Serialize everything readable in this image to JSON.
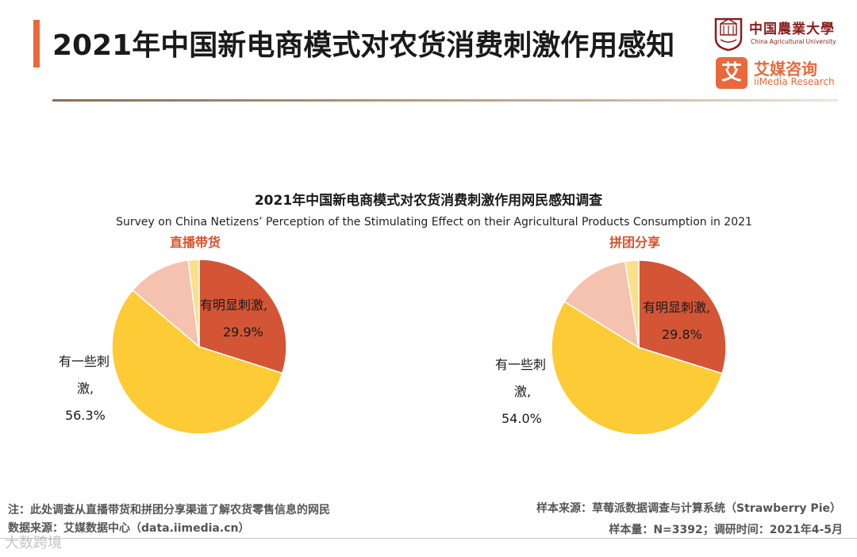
{
  "header": {
    "title": "2021年中国新电商模式对农货消费刺激作用感知"
  },
  "logos": {
    "cau": {
      "cn": "中国農業大學",
      "en": "China Agricultural University"
    },
    "iimedia": {
      "badge": "艾",
      "cn": "艾媒咨询",
      "en": "iiMedia Research"
    }
  },
  "chart_data": {
    "type": "pie",
    "title": "2021年中国新电商模式对农货消费刺激作用网民感知调查",
    "subtitle": "Survey on China Netizens’  Perception of the Stimulating Effect on their Agricultural Products Consumption in 2021",
    "categories": [
      "有明显刺激",
      "有一些刺激",
      "",
      ""
    ],
    "colors": [
      "#d35535",
      "#fccb35",
      "#f4c2ae",
      "#fbe08a"
    ],
    "charts": [
      {
        "name": "直播带货",
        "values": [
          29.9,
          56.3,
          11.8,
          2.0
        ],
        "labels": {
          "strong_line1": "有明显刺激,",
          "strong_line2": "29.9%",
          "some_line1": "有一些刺",
          "some_line2": "激,",
          "some_line3": "56.3%"
        }
      },
      {
        "name": "拼团分享",
        "values": [
          29.8,
          54.0,
          13.7,
          2.5
        ],
        "labels": {
          "strong_line1": "有明显刺激,",
          "strong_line2": "29.8%",
          "some_line1": "有一些刺",
          "some_line2": "激,",
          "some_line3": "54.0%"
        }
      }
    ]
  },
  "footer": {
    "note": "注：此处调查从直播带货和拼团分享渠道了解农货零售信息的网民",
    "data_source": "数据来源：艾媒数据中心（data.iimedia.cn）",
    "sample_source": "样本来源：草莓派数据调查与计算系统（Strawberry Pie）",
    "sample_size": "样本量：N=3392；调研时间：2021年4-5月"
  },
  "watermark": "大数跨境"
}
